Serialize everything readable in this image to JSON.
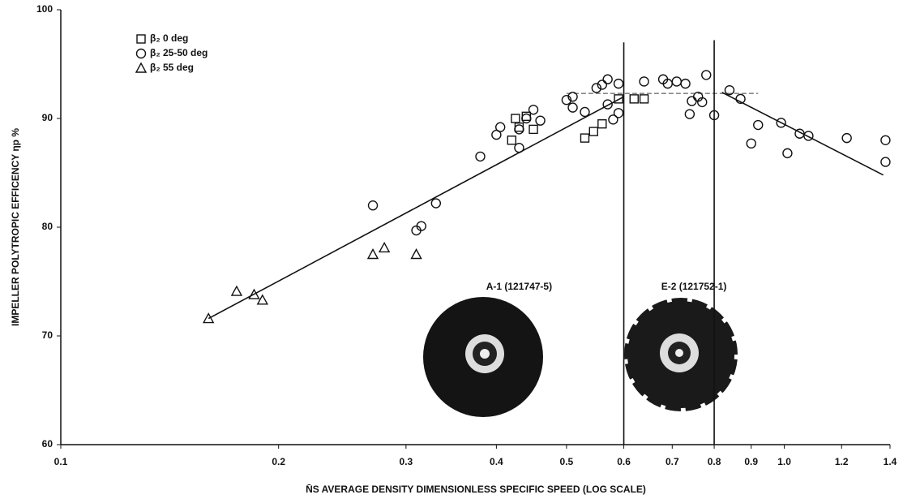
{
  "chart_data": {
    "type": "scatter",
    "log_x": true,
    "x_label": "N̄S AVERAGE DENSITY DIMENSIONLESS SPECIFIC SPEED (LOG SCALE)",
    "y_label": "IMPELLER POLYTROPIC EFFICENCY ηp %",
    "xlim": [
      0.1,
      1.4
    ],
    "ylim": [
      60,
      100
    ],
    "xticks": [
      0.1,
      0.2,
      0.3,
      0.4,
      0.5,
      0.6,
      0.7,
      0.8,
      0.9,
      {
        "value": 1,
        "label": "1.0"
      },
      1.2,
      1.4
    ],
    "yticks": [
      60,
      70,
      80,
      90,
      100
    ],
    "legend": "top-left",
    "series": [
      {
        "name": "β₂ 0 deg",
        "marker": "square",
        "color": "#111",
        "x": [
          0.42,
          0.425,
          0.43,
          0.45,
          0.44,
          0.53,
          0.545,
          0.56,
          0.59,
          0.62,
          0.64
        ],
        "y": [
          88,
          90,
          89.2,
          89,
          90.2,
          88.2,
          88.8,
          89.5,
          91.8,
          91.8,
          91.8
        ]
      },
      {
        "name": "β₂ 25-50 deg",
        "marker": "circle",
        "color": "#111",
        "x": [
          0.27,
          0.31,
          0.315,
          0.33,
          0.38,
          0.4,
          0.405,
          0.43,
          0.43,
          0.44,
          0.45,
          0.46,
          0.5,
          0.51,
          0.51,
          0.53,
          0.55,
          0.56,
          0.57,
          0.57,
          0.58,
          0.59,
          0.59,
          0.64,
          0.68,
          0.69,
          0.71,
          0.73,
          0.74,
          0.745,
          0.76,
          0.77,
          0.78,
          0.8,
          0.84,
          0.87,
          0.9,
          0.92,
          0.99,
          1.01,
          1.05,
          1.08,
          1.22,
          1.38,
          1.38
        ],
        "y": [
          82,
          79.7,
          80.1,
          82.2,
          86.5,
          88.5,
          89.2,
          87.3,
          89,
          90,
          90.8,
          89.8,
          91.7,
          91,
          92,
          90.6,
          92.8,
          93.1,
          93.6,
          91.3,
          89.9,
          90.5,
          93.2,
          93.4,
          93.6,
          93.2,
          93.4,
          93.2,
          90.4,
          91.6,
          92,
          91.5,
          94,
          90.3,
          92.6,
          91.8,
          87.7,
          89.4,
          89.6,
          86.8,
          88.6,
          88.4,
          88.2,
          88,
          86
        ]
      },
      {
        "name": "β₂ 55 deg",
        "marker": "triangle",
        "color": "#111",
        "x": [
          0.16,
          0.175,
          0.185,
          0.19,
          0.27,
          0.28,
          0.31
        ],
        "y": [
          71.6,
          74.1,
          73.8,
          73.3,
          77.5,
          78.1,
          77.5
        ]
      }
    ],
    "lines": [
      {
        "x": [
          0.16,
          0.6
        ],
        "y": [
          71.6,
          92
        ],
        "style": "solid"
      },
      {
        "x": [
          0.5,
          0.92
        ],
        "y": [
          92.3,
          92.3
        ],
        "style": "dashed"
      },
      {
        "x": [
          0.82,
          1.37
        ],
        "y": [
          92.4,
          84.8
        ],
        "style": "solid"
      },
      {
        "x": [
          0.6,
          0.6
        ],
        "y": [
          60,
          97
        ],
        "style": "solid"
      },
      {
        "x": [
          0.8,
          0.8
        ],
        "y": [
          60,
          97.2
        ],
        "style": "solid"
      }
    ],
    "annotations": [
      {
        "text": "A-1 (121747-5)",
        "x": 0.43,
        "y": 74.5
      },
      {
        "text": "E-2 (121752-1)",
        "x": 0.75,
        "y": 74.5
      }
    ]
  }
}
